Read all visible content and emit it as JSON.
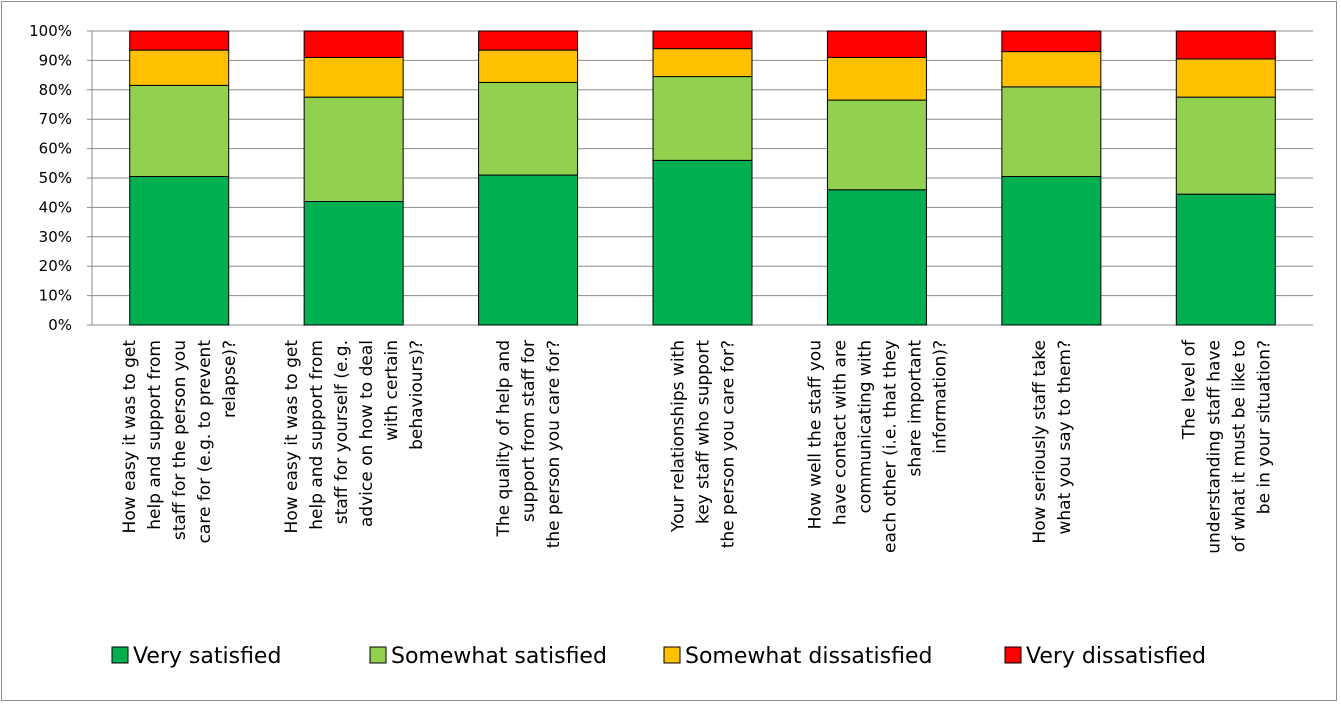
{
  "chart_data": {
    "type": "bar",
    "stacked": true,
    "percent": true,
    "ylim": [
      0,
      100
    ],
    "yticks": [
      "0%",
      "10%",
      "20%",
      "30%",
      "40%",
      "50%",
      "60%",
      "70%",
      "80%",
      "90%",
      "100%"
    ],
    "grid": true,
    "legend_position": "bottom",
    "categories": [
      [
        "How easy it was to get",
        "help and support from",
        "staff for the person you",
        "care for (e.g. to prevent",
        "relapse)?"
      ],
      [
        "How easy it was to get",
        "help and support from",
        "staff for yourself (e.g.",
        "advice on how to deal",
        "with certain",
        "behaviours)?"
      ],
      [
        "The quality of help and",
        "support from staff for",
        "the person you care for?"
      ],
      [
        "Your relationships with",
        "key staff who support",
        "the person you care for?"
      ],
      [
        "How well the staff you",
        "have contact with are",
        "communicating with",
        "each other (i.e. that they",
        "share important",
        "information)?"
      ],
      [
        "How seriously staff take",
        "what you say to them?"
      ],
      [
        "The level of",
        "understanding staff have",
        "of what it must be like to",
        "be in your situation?"
      ]
    ],
    "series": [
      {
        "name": "Very satisfied",
        "color": "#00b050",
        "values": [
          50.5,
          42.0,
          51.0,
          56.0,
          46.0,
          50.5,
          44.5
        ]
      },
      {
        "name": "Somewhat satisfied",
        "color": "#92d050",
        "values": [
          31.0,
          35.5,
          31.5,
          28.5,
          30.5,
          30.5,
          33.0
        ]
      },
      {
        "name": "Somewhat dissatisfied",
        "color": "#ffc000",
        "values": [
          12.0,
          13.5,
          11.0,
          9.5,
          14.5,
          12.0,
          13.0
        ]
      },
      {
        "name": "Very dissatisfied",
        "color": "#ff0000",
        "values": [
          6.5,
          9.0,
          6.5,
          6.0,
          9.0,
          7.0,
          9.5
        ]
      }
    ]
  }
}
